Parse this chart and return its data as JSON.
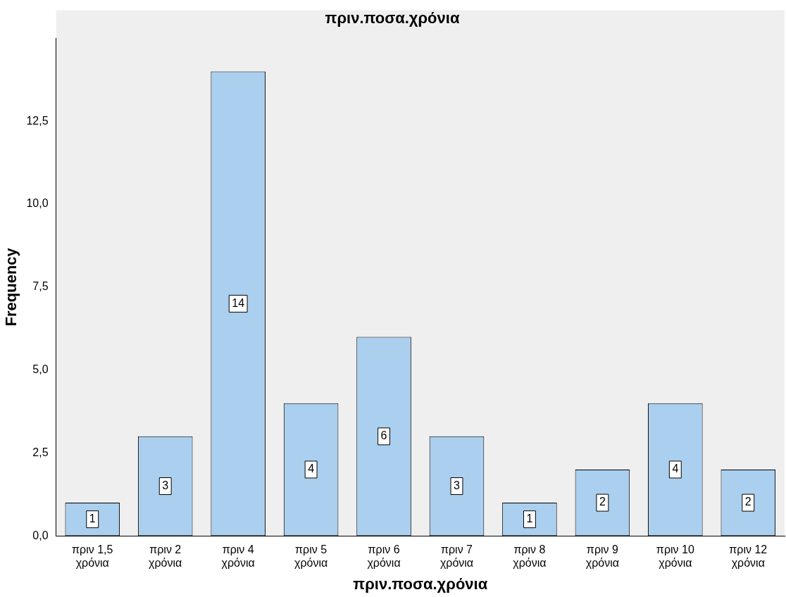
{
  "chart_data": {
    "type": "bar",
    "title": "πριν.ποσα.χρόνια",
    "xlabel": "πριν.ποσα.χρόνια",
    "ylabel": "Frequency",
    "categories": [
      "πριν 1,5 χρόνια",
      "πριν 2 χρόνια",
      "πριν 4 χρόνια",
      "πριν 5 χρόνια",
      "πριν 6 χρόνια",
      "πριν 7 χρόνια",
      "πριν 8 χρόνια",
      "πριν 9 χρόνια",
      "πριν 10 χρόνια",
      "πριν 12 χρόνια"
    ],
    "values": [
      1,
      3,
      14,
      4,
      6,
      3,
      1,
      2,
      4,
      2
    ],
    "color": "#abcfee",
    "ylim": [
      0,
      15
    ],
    "yticks": [
      {
        "value": 0,
        "label": "0,0"
      },
      {
        "value": 2.5,
        "label": "2,5"
      },
      {
        "value": 5,
        "label": "5,0"
      },
      {
        "value": 7.5,
        "label": "7,5"
      },
      {
        "value": 10,
        "label": "10,0"
      },
      {
        "value": 12.5,
        "label": "12,5"
      }
    ],
    "data_labels": true,
    "grid": false,
    "legend": false
  }
}
